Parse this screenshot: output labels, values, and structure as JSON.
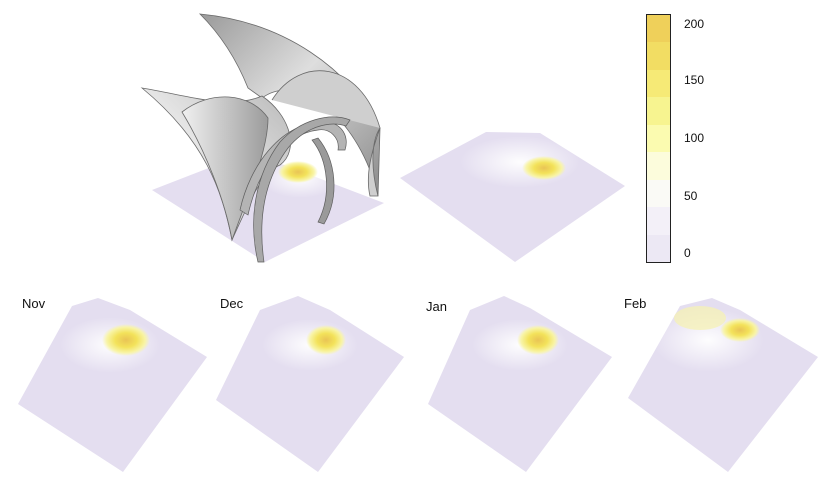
{
  "months": [
    {
      "label": "Nov"
    },
    {
      "label": "Dec"
    },
    {
      "label": "Jan"
    },
    {
      "label": "Feb"
    }
  ],
  "colorbar": {
    "min": 0,
    "max": 200,
    "ticks": [
      "200",
      "150",
      "100",
      "50",
      "0"
    ],
    "colors": [
      "#ece8f4",
      "#f3f0f8",
      "#fafaf6",
      "#fcfcdc",
      "#fbfbb0",
      "#f7f490",
      "#f6ea76",
      "#f2dd63",
      "#efd05a"
    ]
  },
  "colors": {
    "base": "#e4def0",
    "hotspot": "#f3e25a",
    "hotspot_core": "#e9c455",
    "shell_light": "#d8d8d8",
    "shell_dark": "#7a7a7a"
  }
}
